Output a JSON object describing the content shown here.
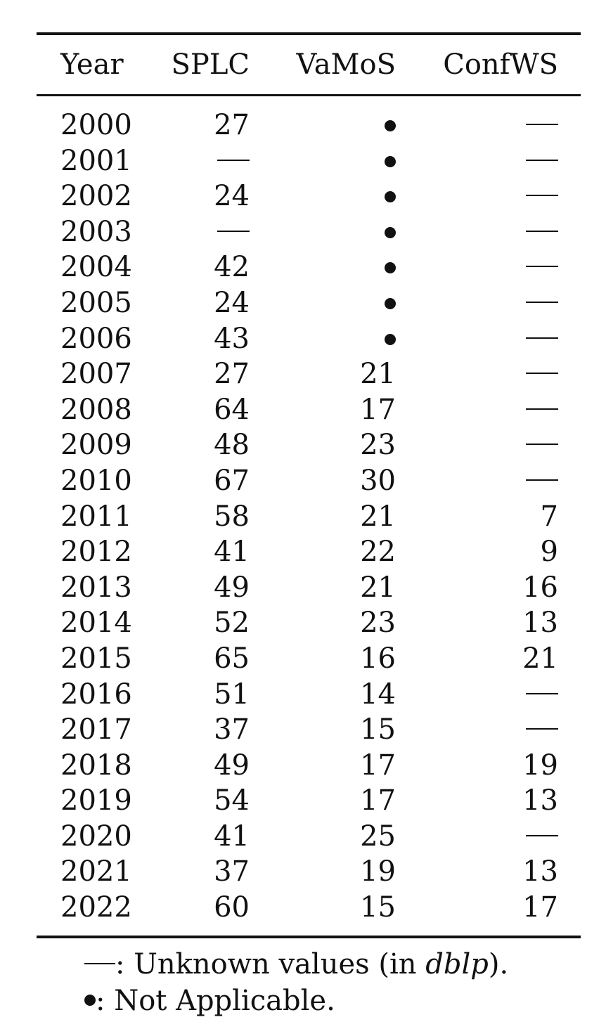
{
  "table": {
    "headers": [
      "Year",
      "SPLC",
      "VaMoS",
      "ConfWS"
    ],
    "rows": [
      {
        "year": "2000",
        "splc": "27",
        "vamos": "•",
        "confws": "—"
      },
      {
        "year": "2001",
        "splc": "—",
        "vamos": "•",
        "confws": "—"
      },
      {
        "year": "2002",
        "splc": "24",
        "vamos": "•",
        "confws": "—"
      },
      {
        "year": "2003",
        "splc": "—",
        "vamos": "•",
        "confws": "—"
      },
      {
        "year": "2004",
        "splc": "42",
        "vamos": "•",
        "confws": "—"
      },
      {
        "year": "2005",
        "splc": "24",
        "vamos": "•",
        "confws": "—"
      },
      {
        "year": "2006",
        "splc": "43",
        "vamos": "•",
        "confws": "—"
      },
      {
        "year": "2007",
        "splc": "27",
        "vamos": "21",
        "confws": "—"
      },
      {
        "year": "2008",
        "splc": "64",
        "vamos": "17",
        "confws": "—"
      },
      {
        "year": "2009",
        "splc": "48",
        "vamos": "23",
        "confws": "—"
      },
      {
        "year": "2010",
        "splc": "67",
        "vamos": "30",
        "confws": "—"
      },
      {
        "year": "2011",
        "splc": "58",
        "vamos": "21",
        "confws": "7"
      },
      {
        "year": "2012",
        "splc": "41",
        "vamos": "22",
        "confws": "9"
      },
      {
        "year": "2013",
        "splc": "49",
        "vamos": "21",
        "confws": "16"
      },
      {
        "year": "2014",
        "splc": "52",
        "vamos": "23",
        "confws": "13"
      },
      {
        "year": "2015",
        "splc": "65",
        "vamos": "16",
        "confws": "21"
      },
      {
        "year": "2016",
        "splc": "51",
        "vamos": "14",
        "confws": "—"
      },
      {
        "year": "2017",
        "splc": "37",
        "vamos": "15",
        "confws": "—"
      },
      {
        "year": "2018",
        "splc": "49",
        "vamos": "17",
        "confws": "19"
      },
      {
        "year": "2019",
        "splc": "54",
        "vamos": "17",
        "confws": "13"
      },
      {
        "year": "2020",
        "splc": "41",
        "vamos": "25",
        "confws": "—"
      },
      {
        "year": "2021",
        "splc": "37",
        "vamos": "19",
        "confws": "13"
      },
      {
        "year": "2022",
        "splc": "60",
        "vamos": "15",
        "confws": "17"
      }
    ]
  },
  "notes": {
    "dash_symbol": "—",
    "dash_text_before": ": Unknown values (in ",
    "dash_text_italic": "dblp",
    "dash_text_after": ").",
    "bullet_symbol": "•",
    "bullet_text": ": Not Applicable."
  }
}
